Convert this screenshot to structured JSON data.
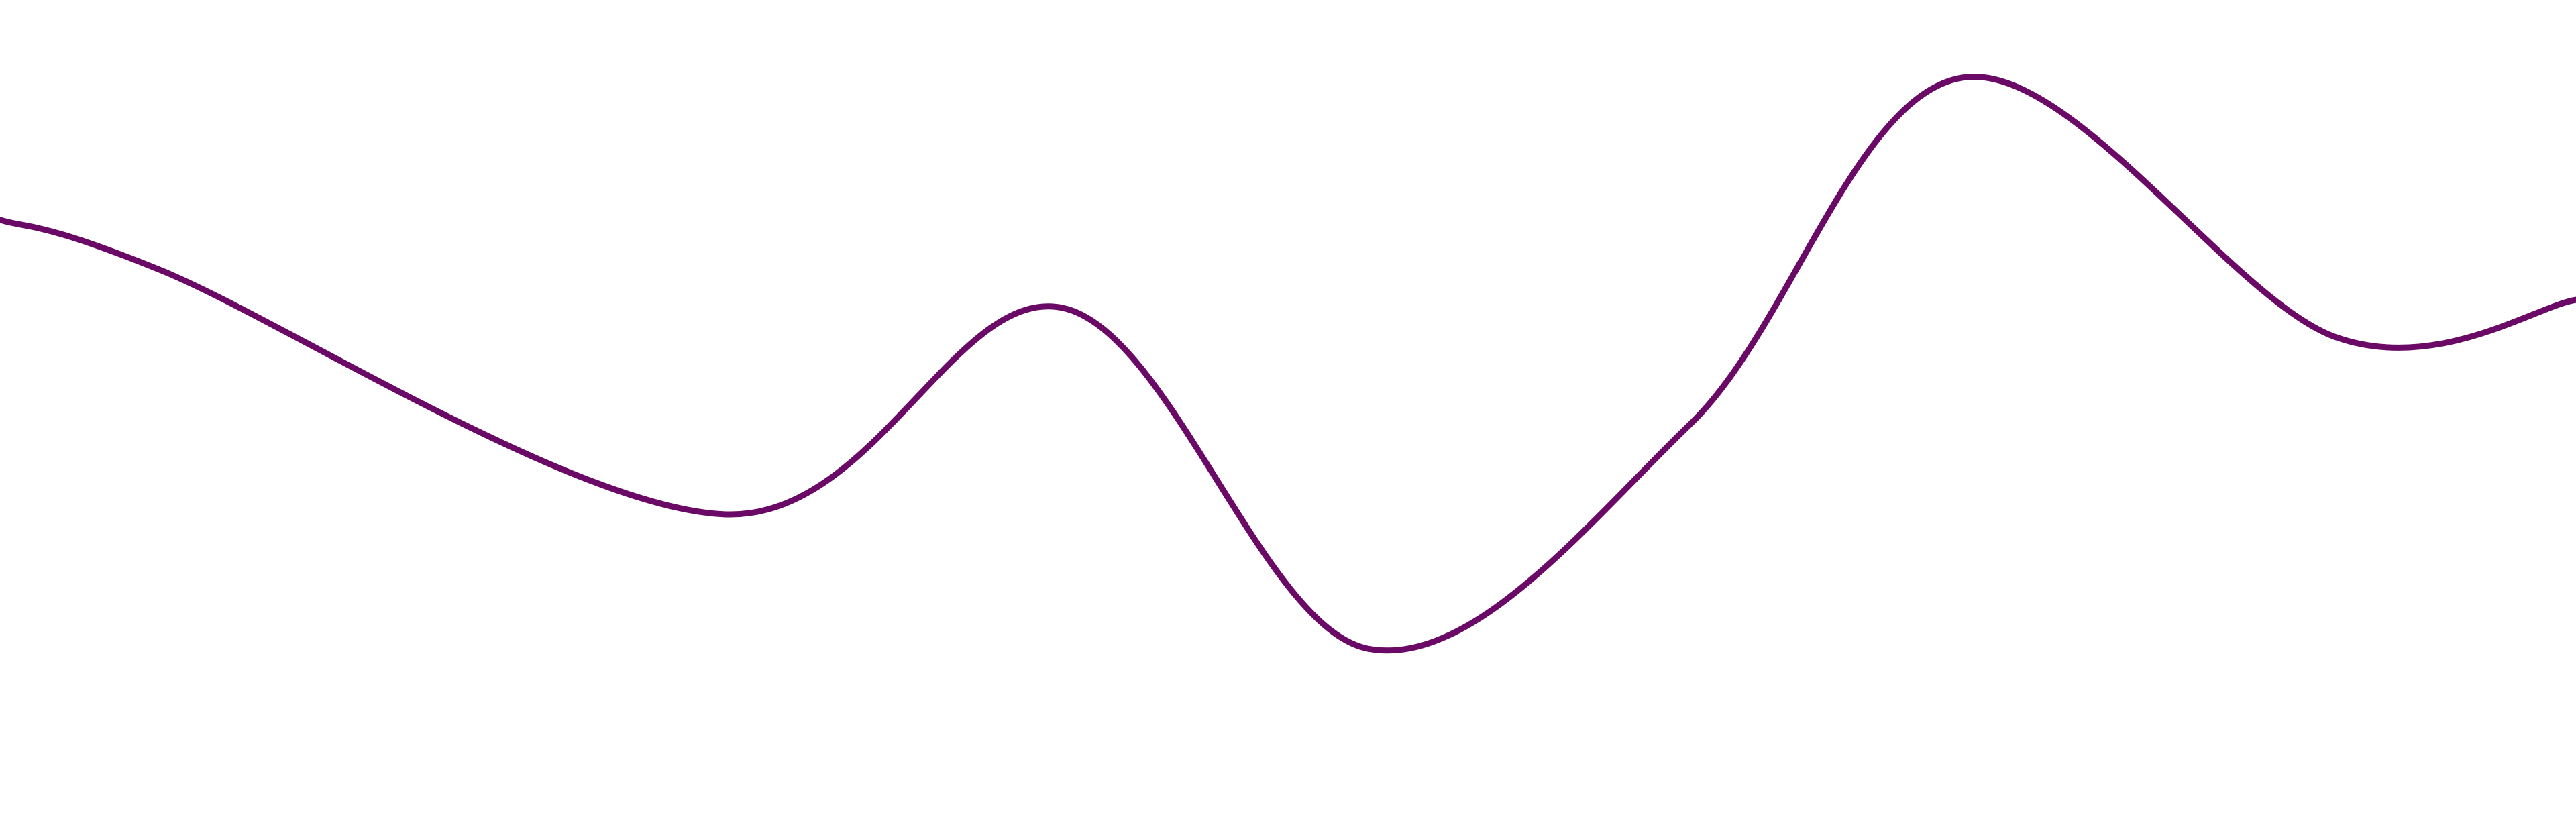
{
  "chart_data": {
    "type": "line",
    "title": "",
    "xlabel": "",
    "ylabel": "",
    "grid": false,
    "legend": "none",
    "curve": "smooth",
    "xlim": [
      -0.5,
      15.5
    ],
    "ylim": [
      0,
      100
    ],
    "series": [
      {
        "color": "#6a0a66",
        "points": [
          {
            "x": -0.5,
            "y": 74.2
          },
          {
            "x": 0.5,
            "y": 67.9
          },
          {
            "x": 4.0,
            "y": 37.4
          },
          {
            "x": 6.1,
            "y": 63.2
          },
          {
            "x": 8.0,
            "y": 20.6
          },
          {
            "x": 10.0,
            "y": 48.7
          },
          {
            "x": 11.7,
            "y": 92.0
          },
          {
            "x": 14.0,
            "y": 59.6
          },
          {
            "x": 15.5,
            "y": 64.2
          }
        ]
      }
    ]
  }
}
